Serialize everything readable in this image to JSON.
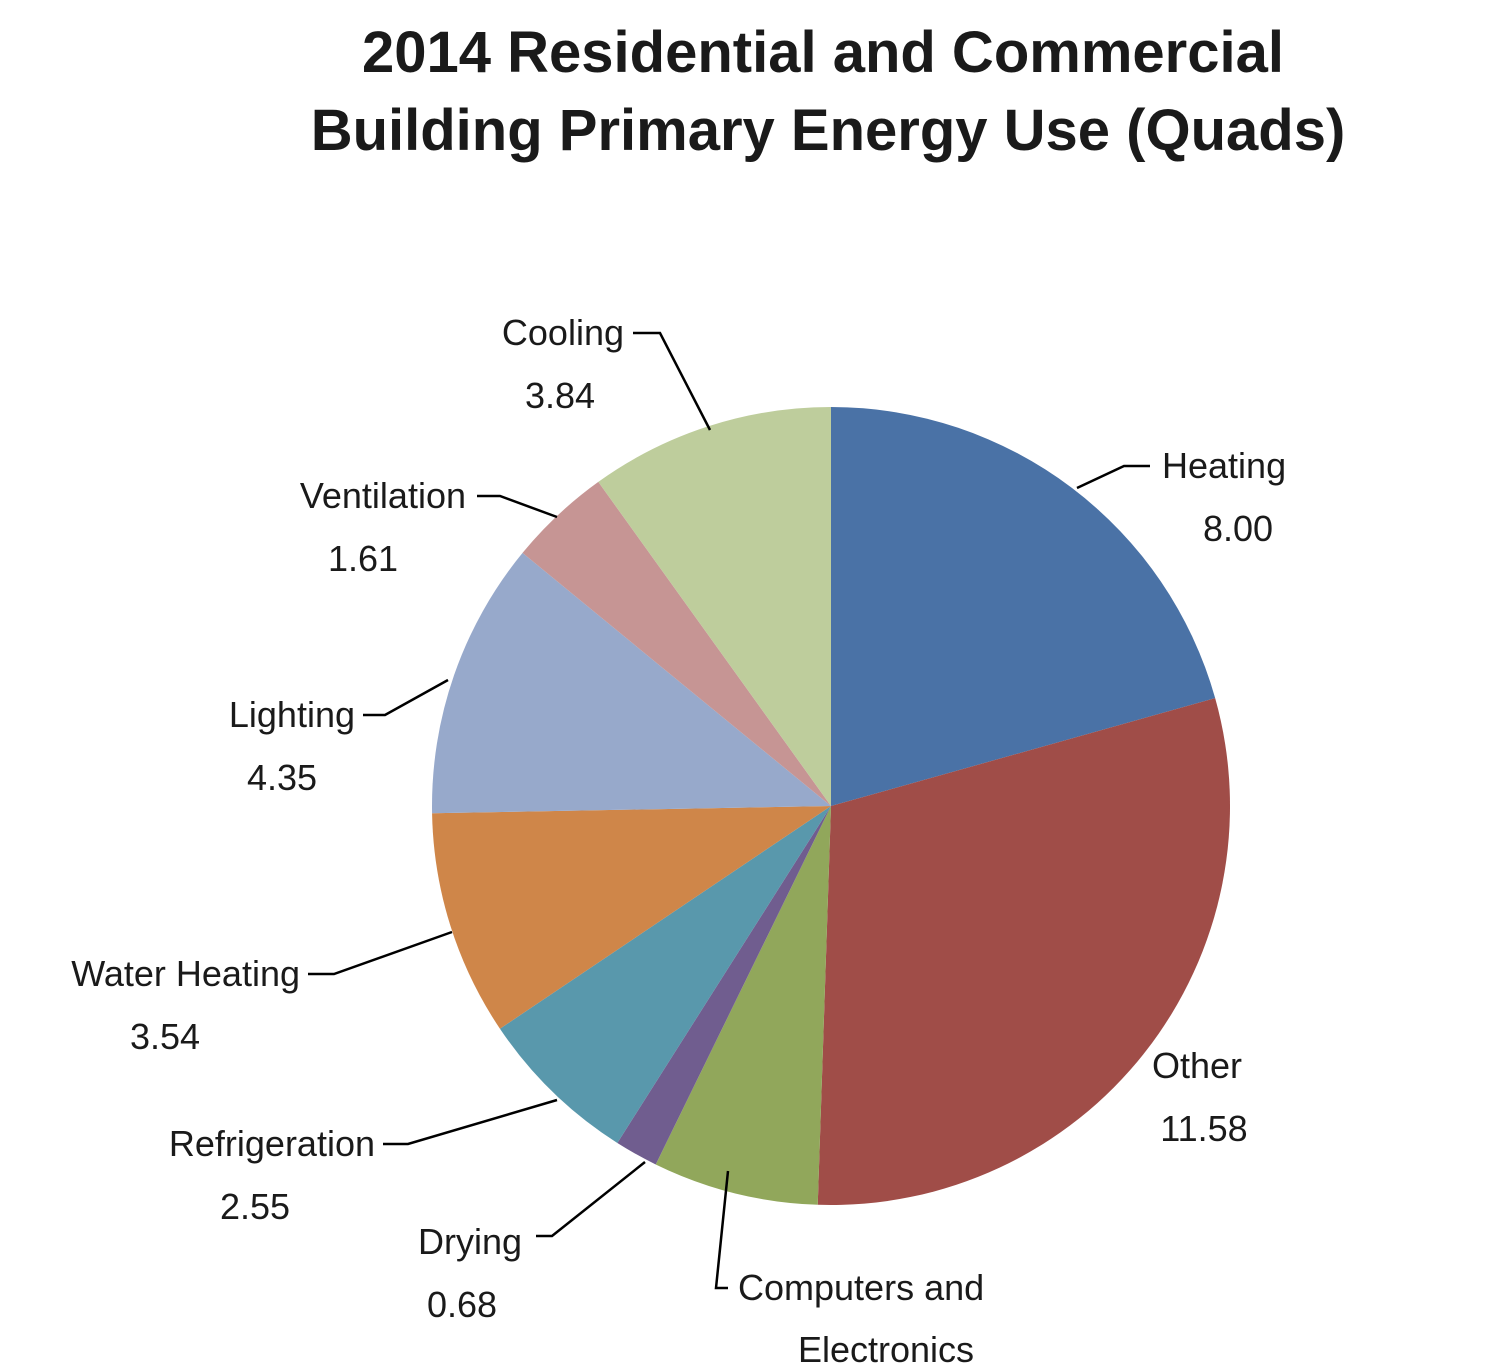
{
  "chart_data": {
    "type": "pie",
    "title": "2014 Residential and Commercial Building Primary Energy Use (Quads)",
    "title_lines": [
      "2014 Residential and Commercial",
      "Building Primary Energy Use (Quads)"
    ],
    "unit": "Quads",
    "start_angle_deg": 0,
    "direction": "clockwise",
    "slices": [
      {
        "label": "Heating",
        "value": 8.0,
        "value_text": "8.00",
        "color": "#4A72A6"
      },
      {
        "label": "Other",
        "value": 11.58,
        "value_text": "11.58",
        "color": "#A04D48"
      },
      {
        "label": "Computers and Electronics",
        "value": 2.6,
        "value_text": "",
        "color": "#91A75B"
      },
      {
        "label": "Drying",
        "value": 0.68,
        "value_text": "0.68",
        "color": "#705D8F"
      },
      {
        "label": "Refrigeration",
        "value": 2.55,
        "value_text": "2.55",
        "color": "#5998AC"
      },
      {
        "label": "Water Heating",
        "value": 3.54,
        "value_text": "3.54",
        "color": "#CF8649"
      },
      {
        "label": "Lighting",
        "value": 4.35,
        "value_text": "4.35",
        "color": "#97A9CB"
      },
      {
        "label": "Ventilation",
        "value": 1.61,
        "value_text": "1.61",
        "color": "#C69594"
      },
      {
        "label": "Cooling",
        "value": 3.84,
        "value_text": "3.84",
        "color": "#BECD9C"
      }
    ]
  }
}
